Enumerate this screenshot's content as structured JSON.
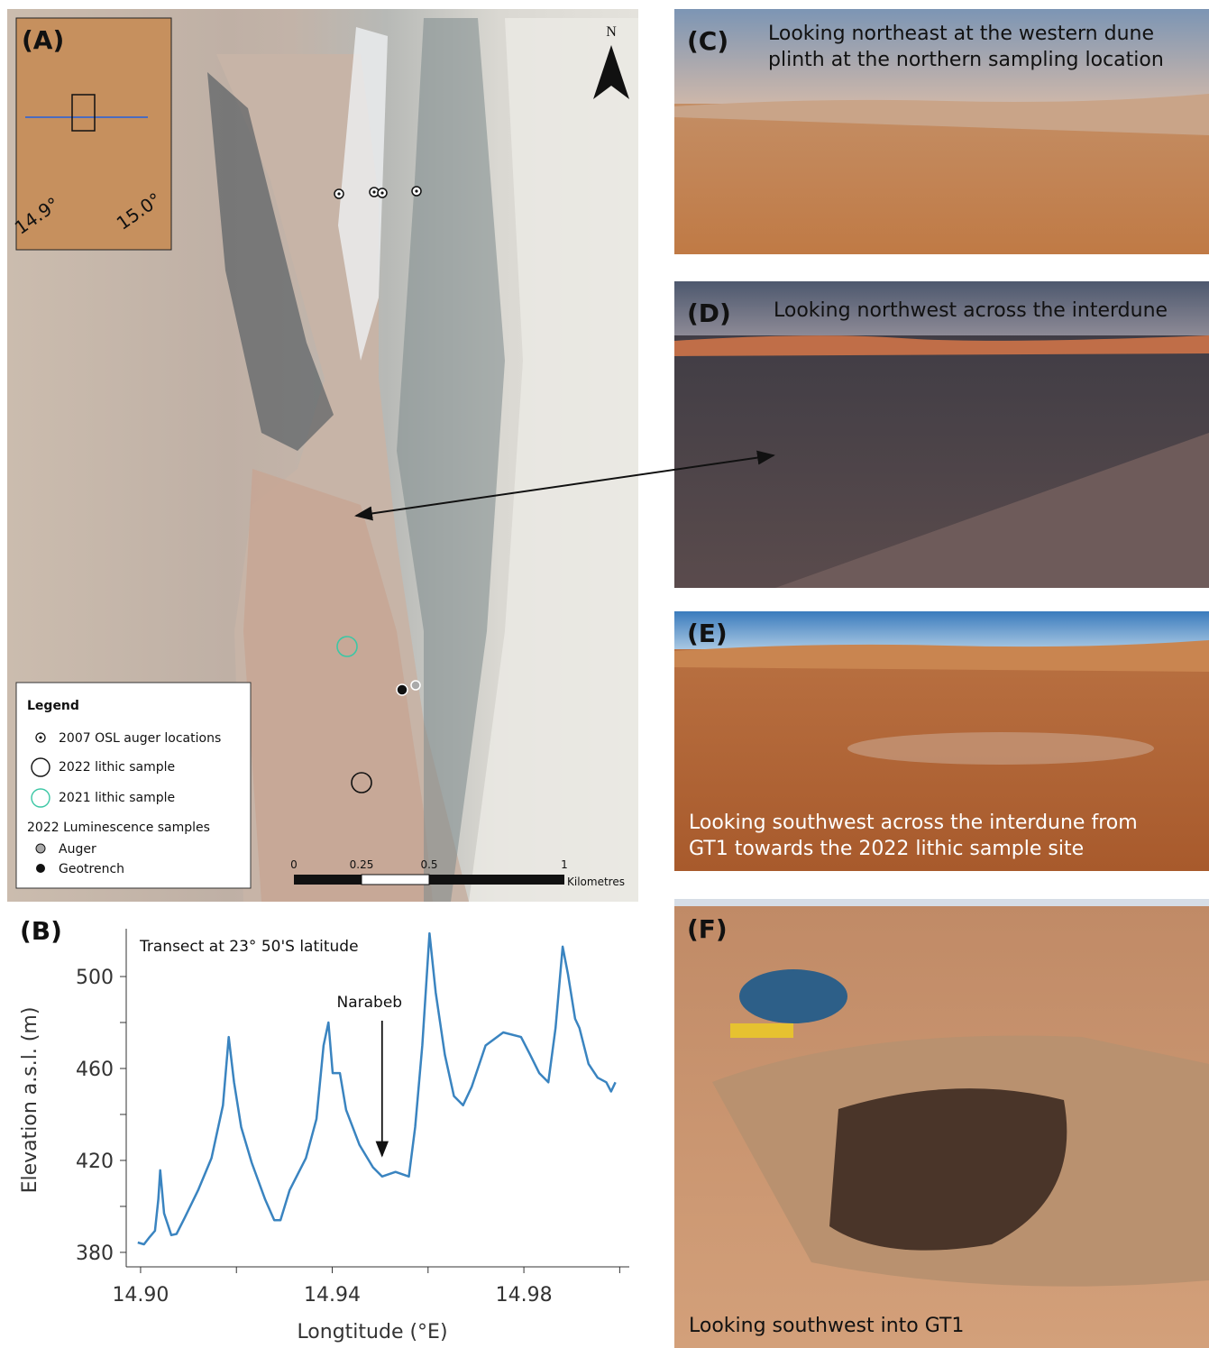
{
  "panels": {
    "A": {
      "label": "(A)",
      "inset_labels": [
        "14.9°",
        "15.0°"
      ],
      "north": "N",
      "scale_labels": [
        "0",
        "0.25",
        "0.5",
        "1"
      ],
      "scale_unit": "Kilometres",
      "legend": {
        "title": "Legend",
        "items": [
          "2007 OSL auger locations",
          "2022 lithic sample",
          "2021 lithic sample"
        ],
        "subtitle": "2022 Luminescence samples",
        "subitems": [
          "Auger",
          "Geotrench"
        ]
      }
    },
    "C": {
      "label": "(C)",
      "caption": [
        "Looking northeast at the western dune",
        "plinth at the northern sampling location"
      ]
    },
    "D": {
      "label": "(D)",
      "caption": [
        "Looking northwest across the interdune"
      ]
    },
    "E": {
      "label": "(E)",
      "caption": [
        "Looking southwest across the interdune from",
        "GT1 towards the 2022 lithic sample site"
      ]
    },
    "F": {
      "label": "(F)",
      "caption": [
        "Looking southwest into GT1"
      ]
    }
  },
  "chart_data": {
    "type": "line",
    "panel_label": "(B)",
    "title": "Transect at 23° 50'S latitude",
    "x_label": "Longtitude (°E)",
    "y_label": "Elevation a.s.l. (m)",
    "color": "#3a84c0",
    "x": [
      14.8994,
      14.9007,
      14.9019,
      14.903,
      14.9037,
      14.9041,
      14.9049,
      14.9064,
      14.9075,
      14.9092,
      14.912,
      14.9148,
      14.9172,
      14.9184,
      14.9195,
      14.921,
      14.9232,
      14.926,
      14.9279,
      14.9292,
      14.9311,
      14.9345,
      14.9367,
      14.9382,
      14.9392,
      14.9401,
      14.9416,
      14.9429,
      14.9457,
      14.9485,
      14.9504,
      14.9532,
      14.956,
      14.9573,
      14.9588,
      14.9603,
      14.9616,
      14.9635,
      14.9654,
      14.9673,
      14.9691,
      14.972,
      14.9757,
      14.9794,
      14.9813,
      14.9832,
      14.9851,
      14.9866,
      14.9881,
      14.9892,
      14.9907,
      14.9916,
      14.9935,
      14.9954,
      14.9972,
      14.9982,
      14.9991
    ],
    "values": [
      384.3,
      383.5,
      386.7,
      389.4,
      403,
      415.7,
      397,
      387.5,
      388,
      395,
      407,
      421,
      444,
      473.7,
      454,
      434.5,
      419,
      403,
      394,
      394,
      407,
      421,
      438,
      470,
      480,
      458,
      458,
      442,
      426.7,
      417,
      413,
      415,
      413,
      434.5,
      470,
      518.8,
      493,
      466,
      448,
      444,
      452,
      470,
      475.7,
      473.7,
      466,
      458,
      454,
      477.6,
      513,
      501,
      481.6,
      477.6,
      462,
      456,
      454,
      450,
      454
    ],
    "xlim": [
      14.897,
      15.002
    ],
    "ylim": [
      373.7,
      520.8
    ],
    "xticks": [
      {
        "value": 14.9,
        "label": "14.90"
      },
      14.94,
      14.98
    ],
    "xminor": [
      14.92,
      14.96,
      15.0
    ],
    "yticks": [
      380,
      420,
      460,
      500
    ],
    "yminor": [
      400,
      440,
      480
    ],
    "annotation": {
      "text": "Narabeb",
      "x": 14.9504,
      "y": 422
    }
  }
}
